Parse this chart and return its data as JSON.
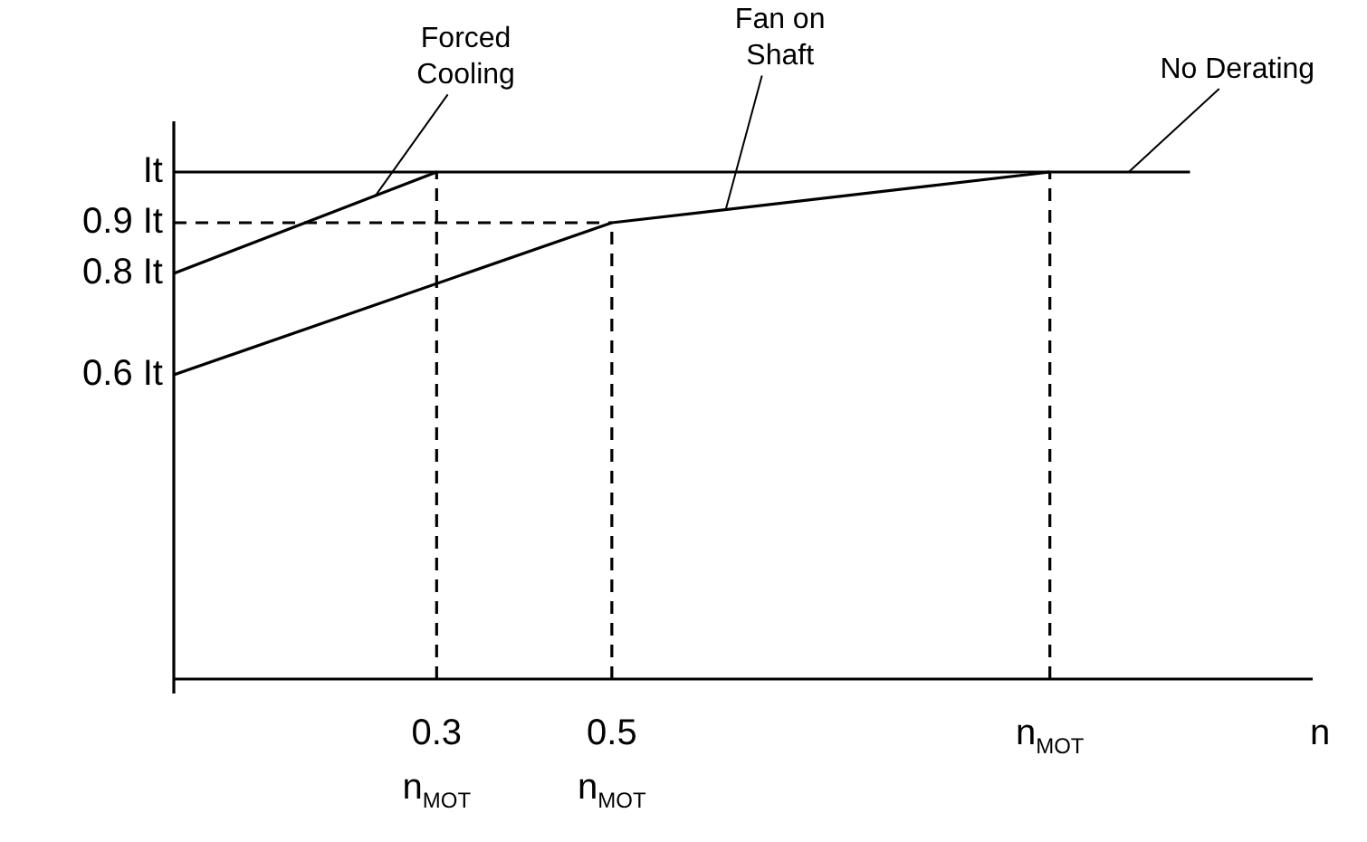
{
  "chart_data": {
    "type": "line",
    "xlabel": "n",
    "series": [
      {
        "color": "#000000",
        "x": [
          0,
          0.3
        ],
        "values": [
          0.8,
          1
        ]
      },
      {
        "color": "#000000",
        "x": [
          0,
          0.5,
          1
        ],
        "values": [
          0.6,
          0.9,
          1
        ]
      },
      {
        "color": "#000000",
        "x": [
          0,
          1.16
        ],
        "values": [
          1,
          1
        ]
      },
      {
        "color": "#000000",
        "line_style": "dashed",
        "x": [
          0,
          0.5
        ],
        "values": [
          0.9,
          0.9
        ]
      },
      {
        "color": "#000000",
        "line_style": "dashed",
        "x": [
          0.3,
          0.3
        ],
        "values": [
          0,
          1
        ]
      },
      {
        "color": "#000000",
        "line_style": "dashed",
        "x": [
          0.5,
          0.5
        ],
        "values": [
          0,
          0.9
        ]
      },
      {
        "color": "#000000",
        "line_style": "dashed",
        "x": [
          1,
          1
        ],
        "values": [
          0,
          1
        ]
      }
    ],
    "xlim": [
      0,
      1.3
    ],
    "ylim": [
      0,
      1.1
    ],
    "xticks": [
      {
        "value": 0.3,
        "label": "0.3 n$_{MOT}$"
      },
      {
        "value": 0.5,
        "label": "0.5 n$_{MOT}$"
      },
      {
        "value": 1,
        "label": "n$_{MOT}$"
      }
    ],
    "yticks": [
      {
        "value": 0.6,
        "label": "0.6 It"
      },
      {
        "value": 0.8,
        "label": "0.8 It"
      },
      {
        "value": 0.9,
        "label": "0.9 It"
      },
      {
        "value": 1,
        "label": "It"
      }
    ],
    "annotations": [
      {
        "text": "Forced Cooling",
        "x": 0.23,
        "y": 0.953
      },
      {
        "text": "Fan on Shaft",
        "x": 0.63,
        "y": 0.926
      },
      {
        "text": "No Derating",
        "x": 1.09,
        "y": 1
      }
    ],
    "grid": false,
    "legend": false,
    "marker": "none",
    "line_style": "solid"
  }
}
